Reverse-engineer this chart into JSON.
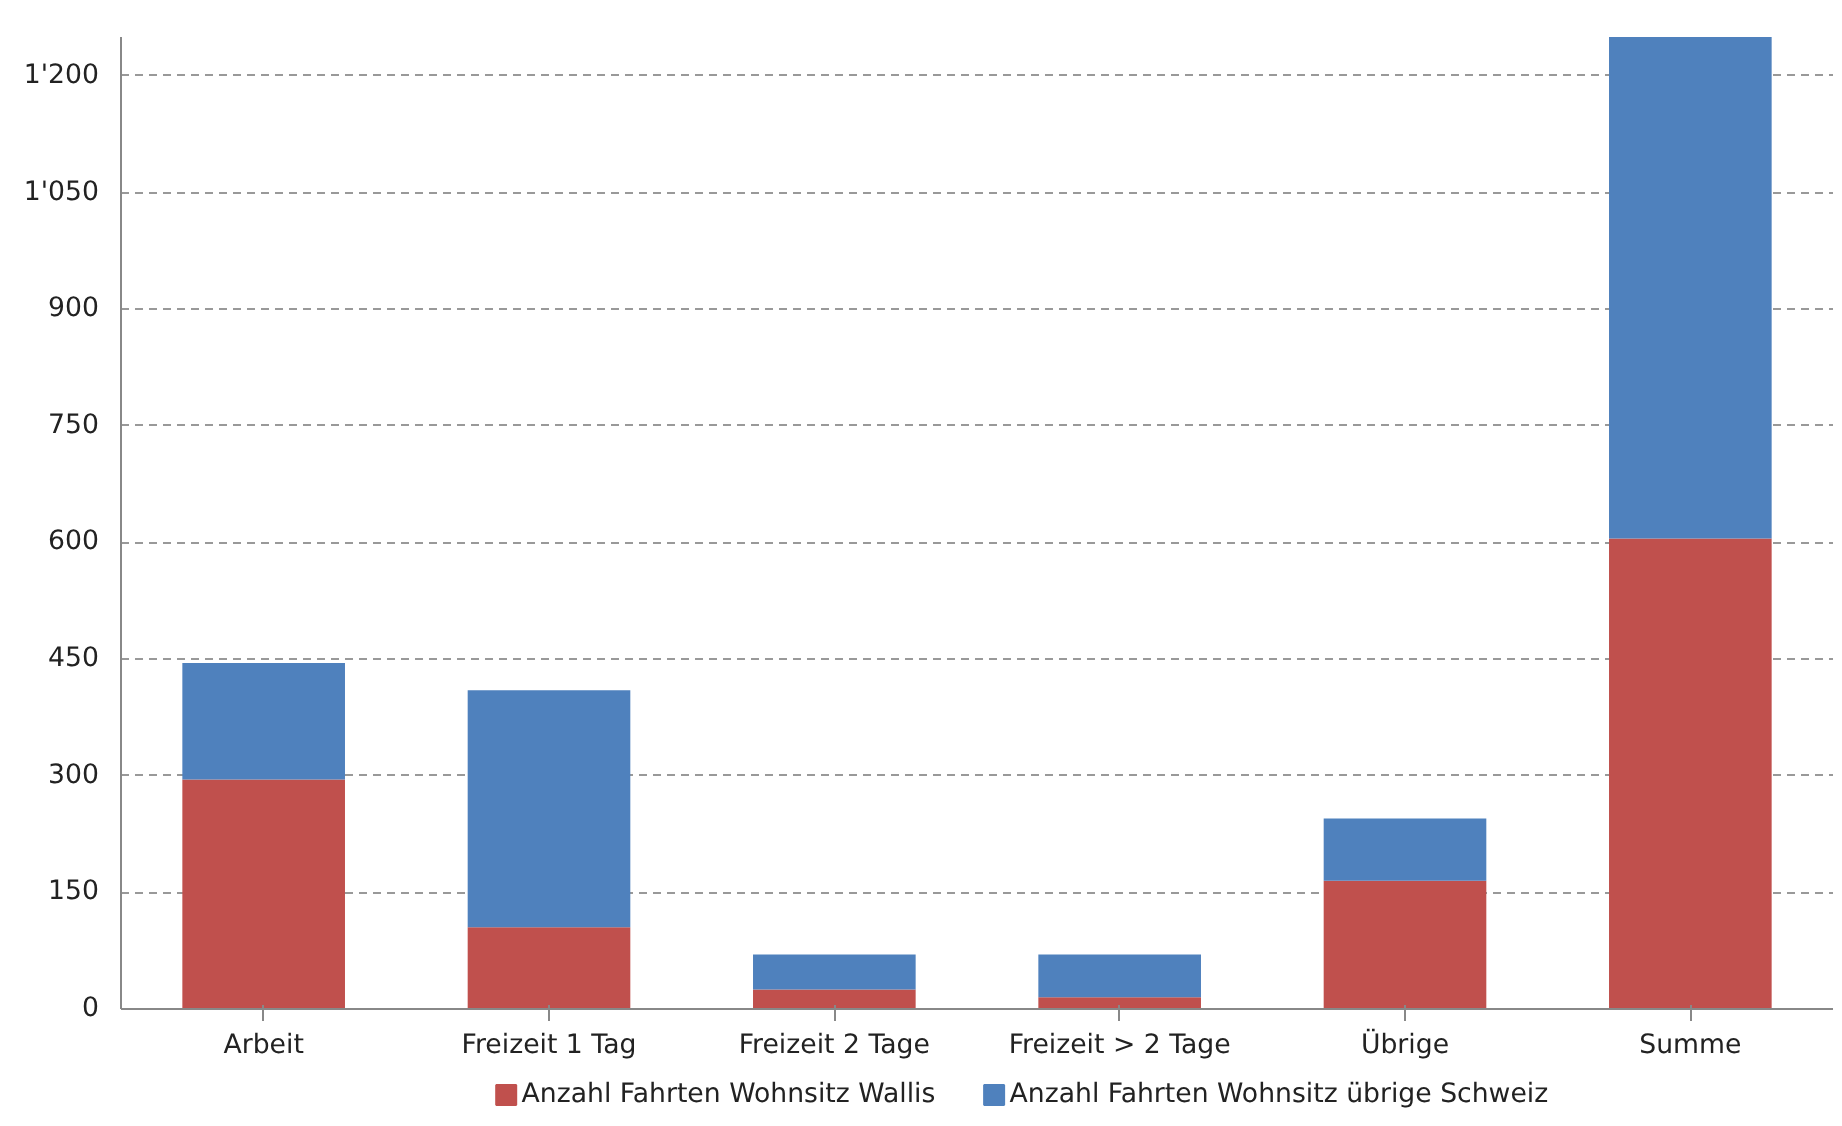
{
  "chart_data": {
    "type": "bar",
    "stacked": true,
    "categories": [
      "Arbeit",
      "Freizeit 1 Tag",
      "Freizeit 2 Tage",
      "Freizeit > 2 Tage",
      "Übrige",
      "Summe"
    ],
    "series": [
      {
        "name": "Anzahl Fahrten Wohnsitz Wallis",
        "color": "#c0504d",
        "values": [
          295,
          105,
          25,
          15,
          165,
          605
        ]
      },
      {
        "name": "Anzahl Fahrten Wohnsitz übrige Schweiz",
        "color": "#4f81bd",
        "values": [
          150,
          305,
          45,
          55,
          80,
          645
        ]
      }
    ],
    "ylim": [
      0,
      1250
    ],
    "yticks": [
      0,
      150,
      300,
      450,
      600,
      750,
      900,
      {
        "value": 1050,
        "label": "1'050"
      },
      {
        "value": 1200,
        "label": "1'200"
      }
    ],
    "grid": "y",
    "legend": "bottom"
  }
}
